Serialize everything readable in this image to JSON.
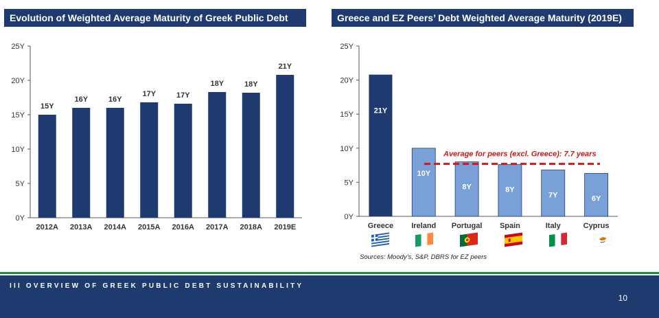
{
  "chart_data": [
    {
      "type": "bar",
      "title": "Evolution of Weighted Average Maturity of Greek Public Debt",
      "categories": [
        "2012A",
        "2013A",
        "2014A",
        "2015A",
        "2016A",
        "2017A",
        "2018A",
        "2019E"
      ],
      "values": [
        15,
        16,
        16,
        16.8,
        16.6,
        18.3,
        18.2,
        20.8
      ],
      "labels": [
        "15Y",
        "16Y",
        "16Y",
        "17Y",
        "17Y",
        "18Y",
        "18Y",
        "21Y"
      ],
      "yticks": [
        "0Y",
        "5Y",
        "10Y",
        "15Y",
        "20Y",
        "25Y"
      ],
      "ylim": [
        0,
        25
      ],
      "grid": false,
      "color": "#1f3a6e"
    },
    {
      "type": "bar",
      "title": "Greece and EZ Peers’ Debt Weighted Average Maturity (2019E)",
      "categories": [
        "Greece",
        "Ireland",
        "Portugal",
        "Spain",
        "Italy",
        "Cyprus"
      ],
      "values": [
        20.8,
        10,
        8,
        7.6,
        6.8,
        6.3
      ],
      "labels": [
        "21Y",
        "10Y",
        "8Y",
        "8Y",
        "7Y",
        "6Y"
      ],
      "yticks": [
        "0Y",
        "5Y",
        "10Y",
        "15Y",
        "20Y",
        "25Y"
      ],
      "ylim": [
        0,
        25
      ],
      "grid": false,
      "colors": [
        "#1f3a6e",
        "#7aa0d8",
        "#7aa0d8",
        "#7aa0d8",
        "#7aa0d8",
        "#7aa0d8"
      ],
      "reference_line": {
        "value": 7.7,
        "label": "Average for peers (excl. Greece): 7.7 years",
        "color": "#c8191e",
        "style": "dashed"
      },
      "flags": [
        {
          "country": "Greece",
          "icon": "greece-flag-icon"
        },
        {
          "country": "Ireland",
          "icon": "ireland-flag-icon"
        },
        {
          "country": "Portugal",
          "icon": "portugal-flag-icon"
        },
        {
          "country": "Spain",
          "icon": "spain-flag-icon"
        },
        {
          "country": "Italy",
          "icon": "italy-flag-icon"
        },
        {
          "country": "Cyprus",
          "icon": "cyprus-flag-icon"
        }
      ],
      "source": "Sources: Moody’s, S&P, DBRS for EZ peers"
    }
  ],
  "footer": {
    "section": "III   OVERVIEW OF GREEK PUBLIC DEBT SUSTAINABILITY",
    "page_number": "10"
  },
  "colors": {
    "navy": "#1f3a6e",
    "light_blue": "#7aa0d8",
    "green_rule": "#1e8a3c",
    "red_line": "#c8191e"
  }
}
